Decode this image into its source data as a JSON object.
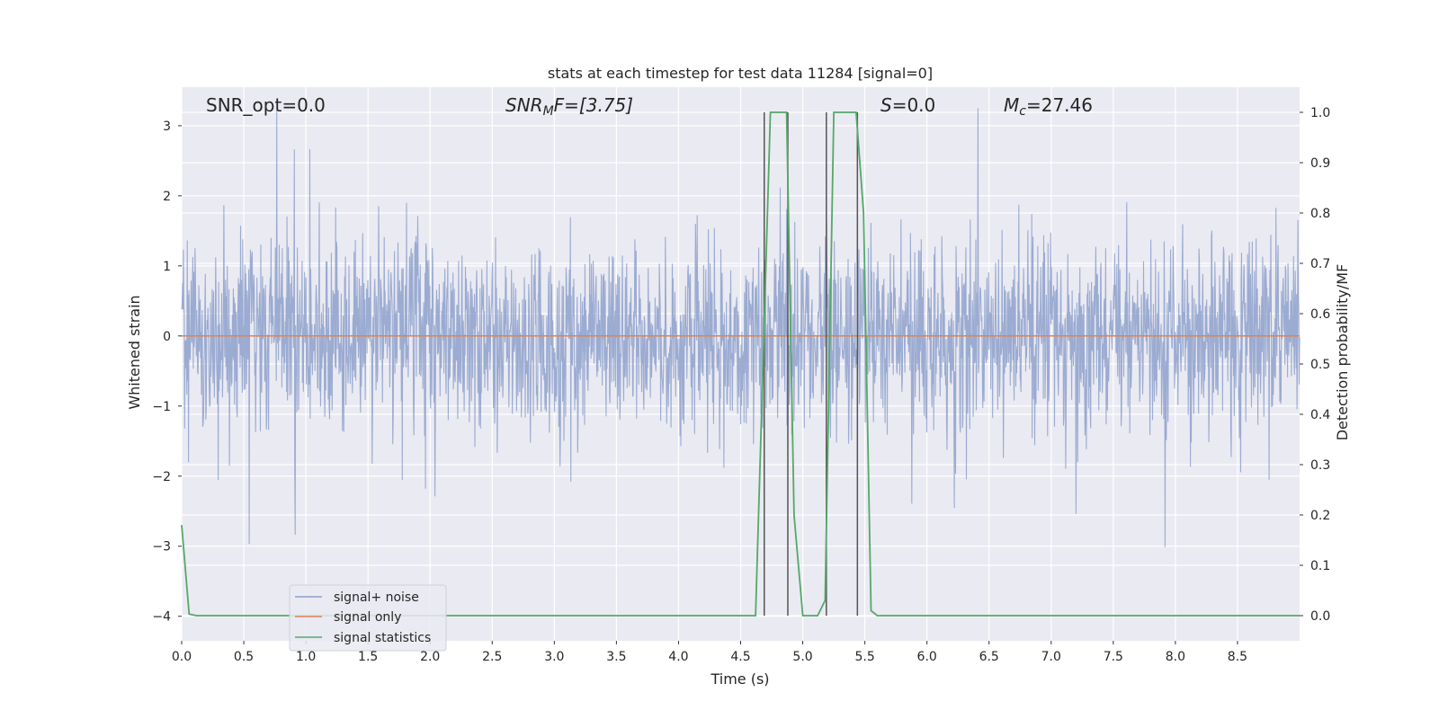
{
  "chart_data": {
    "type": "line",
    "title": "stats at each timestep for test data 11284 [signal=0]",
    "xlabel": "Time (s)",
    "ylabel": "Whitened strain",
    "y2label": "Detection probability/MF",
    "xlim": [
      0.0,
      9.0
    ],
    "ylim": [
      -4.35,
      3.55
    ],
    "y2lim": [
      -0.05,
      1.05
    ],
    "xticks": [
      0.0,
      0.5,
      1.0,
      1.5,
      2.0,
      2.5,
      3.0,
      3.5,
      4.0,
      4.5,
      5.0,
      5.5,
      6.0,
      6.5,
      7.0,
      7.5,
      8.0,
      8.5
    ],
    "yticks": [
      -4,
      -3,
      -2,
      -1,
      0,
      1,
      2,
      3
    ],
    "y2ticks": [
      0.0,
      0.1,
      0.2,
      0.3,
      0.4,
      0.5,
      0.6,
      0.7,
      0.8,
      0.9,
      1.0
    ],
    "grid": true,
    "legend_position": "lower-left",
    "annotations": {
      "snr_opt": "SNR_opt=0.0",
      "snr_mf_base": "SNR",
      "snr_mf_sub": "M",
      "snr_mf_rest": "F=[3.75]",
      "s": "=0.0",
      "s_var": "S",
      "mc_var": "M",
      "mc_sub": "c",
      "mc_rest": "=27.46"
    },
    "series": [
      {
        "name": "signal+ noise",
        "color": "#8da0cb",
        "description_stat": "whitened noise, amplitude roughly within [-3.6, 3.2]"
      },
      {
        "name": "signal only",
        "color": "#dd8452",
        "x": [
          0.0,
          9.0
        ],
        "y": [
          0.0,
          0.0
        ]
      },
      {
        "name": "signal statistics",
        "color": "#55a868",
        "x": [
          0.0,
          0.06,
          0.12,
          4.62,
          4.68,
          4.74,
          4.83,
          4.87,
          4.93,
          5.0,
          5.12,
          5.18,
          5.25,
          5.43,
          5.49,
          5.55,
          5.6,
          9.0
        ],
        "y": [
          0.18,
          0.003,
          0.0,
          0.0,
          0.5,
          1.0,
          1.0,
          1.0,
          0.2,
          0.0,
          0.0,
          0.03,
          1.0,
          1.0,
          0.8,
          0.01,
          0.0,
          0.0
        ]
      }
    ],
    "vlines": [
      {
        "x": 4.69,
        "y2_top": 1.0
      },
      {
        "x": 4.88,
        "y2_top": 1.0
      },
      {
        "x": 5.19,
        "y2_top": 1.0
      },
      {
        "x": 5.44,
        "y2_top": 1.0
      }
    ],
    "background_color": "#eaeaf2",
    "grid_color": "#ffffff"
  }
}
